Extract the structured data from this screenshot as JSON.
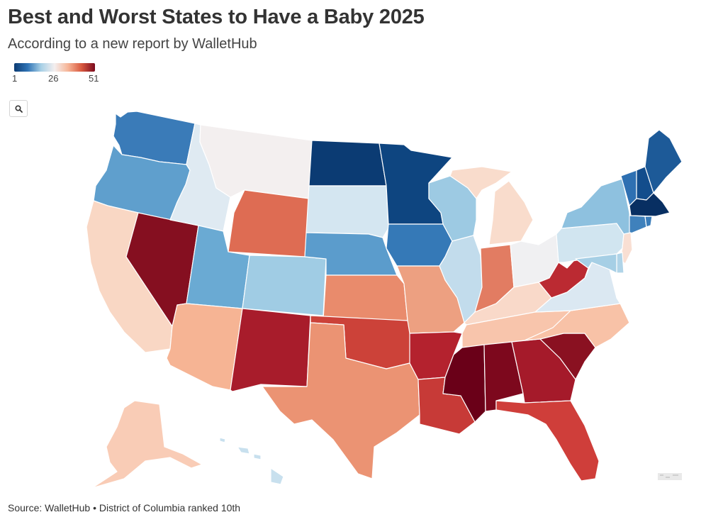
{
  "title": "Best and Worst States to Have a Baby 2025",
  "subtitle": "According to a new report by WalletHub",
  "legend": {
    "min_label": "1",
    "mid_label": "26",
    "max_label": "51",
    "colors": [
      "#0b3b73",
      "#2f73b5",
      "#a8d0e6",
      "#f4efef",
      "#f6b597",
      "#d9593f",
      "#7a0a1e"
    ]
  },
  "zoom_button": {
    "icon": "search-icon"
  },
  "source": "Source: WalletHub • District of Columbia ranked 10th",
  "map": {
    "states": [
      {
        "abbr": "WA",
        "rank": 7,
        "color": "#3a7bb8"
      },
      {
        "abbr": "OR",
        "rank": 12,
        "color": "#5f9fcd"
      },
      {
        "abbr": "CA",
        "rank": 32,
        "color": "#f9d7c4"
      },
      {
        "abbr": "NV",
        "rank": 47,
        "color": "#850f20"
      },
      {
        "abbr": "ID",
        "rank": 22,
        "color": "#dfeaf2"
      },
      {
        "abbr": "MT",
        "rank": 25,
        "color": "#f3efef"
      },
      {
        "abbr": "WY",
        "rank": 39,
        "color": "#de6c53"
      },
      {
        "abbr": "UT",
        "rank": 13,
        "color": "#6aaad3"
      },
      {
        "abbr": "AZ",
        "rank": 34,
        "color": "#f6b494"
      },
      {
        "abbr": "CO",
        "rank": 17,
        "color": "#a0cce4"
      },
      {
        "abbr": "NM",
        "rank": 44,
        "color": "#a81c2b"
      },
      {
        "abbr": "ND",
        "rank": 2,
        "color": "#0b3b73"
      },
      {
        "abbr": "SD",
        "rank": 21,
        "color": "#d4e6f1"
      },
      {
        "abbr": "NE",
        "rank": 11,
        "color": "#5b9ccc"
      },
      {
        "abbr": "KS",
        "rank": 36,
        "color": "#e98b6c"
      },
      {
        "abbr": "OK",
        "rank": 42,
        "color": "#cc4239"
      },
      {
        "abbr": "TX",
        "rank": 35,
        "color": "#eb9373"
      },
      {
        "abbr": "MN",
        "rank": 3,
        "color": "#0e4580"
      },
      {
        "abbr": "IA",
        "rank": 8,
        "color": "#3579b7"
      },
      {
        "abbr": "MO",
        "rank": 33,
        "color": "#eda081"
      },
      {
        "abbr": "AR",
        "rank": 45,
        "color": "#b4222e"
      },
      {
        "abbr": "LA",
        "rank": 43,
        "color": "#c73a37"
      },
      {
        "abbr": "WI",
        "rank": 16,
        "color": "#9dcae3"
      },
      {
        "abbr": "IL",
        "rank": 20,
        "color": "#c2dcec"
      },
      {
        "abbr": "MI",
        "rank": 29,
        "color": "#f9dccc"
      },
      {
        "abbr": "IN",
        "rank": 38,
        "color": "#e27c62"
      },
      {
        "abbr": "OH",
        "rank": 24,
        "color": "#f0f0f2"
      },
      {
        "abbr": "KY",
        "rank": 30,
        "color": "#f9d9c9"
      },
      {
        "abbr": "TN",
        "rank": 33,
        "color": "#f8c5ac"
      },
      {
        "abbr": "MS",
        "rank": 51,
        "color": "#6a0018"
      },
      {
        "abbr": "AL",
        "rank": 50,
        "color": "#7d081d"
      },
      {
        "abbr": "GA",
        "rank": 46,
        "color": "#a51a2a"
      },
      {
        "abbr": "FL",
        "rank": 41,
        "color": "#cf3e3a"
      },
      {
        "abbr": "SC",
        "rank": 48,
        "color": "#8a1121"
      },
      {
        "abbr": "NC",
        "rank": 31,
        "color": "#f8c2a7"
      },
      {
        "abbr": "VA",
        "rank": 23,
        "color": "#dbe8f2"
      },
      {
        "abbr": "WV",
        "rank": 44,
        "color": "#bb2a32"
      },
      {
        "abbr": "PA",
        "rank": 21,
        "color": "#d1e5f0"
      },
      {
        "abbr": "NY",
        "rank": 15,
        "color": "#8ec1df"
      },
      {
        "abbr": "VT",
        "rank": 6,
        "color": "#2e70b2"
      },
      {
        "abbr": "NH",
        "rank": 4,
        "color": "#134d8c"
      },
      {
        "abbr": "ME",
        "rank": 5,
        "color": "#1d5a98"
      },
      {
        "abbr": "MA",
        "rank": 1,
        "color": "#082f62"
      },
      {
        "abbr": "CT",
        "rank": 9,
        "color": "#3f81bc"
      },
      {
        "abbr": "RI",
        "rank": 8,
        "color": "#3a7cb9"
      },
      {
        "abbr": "NJ",
        "rank": 27,
        "color": "#f9dfd3"
      },
      {
        "abbr": "DE",
        "rank": 19,
        "color": "#b0d4e8"
      },
      {
        "abbr": "MD",
        "rank": 18,
        "color": "#a6cfe5"
      },
      {
        "abbr": "AK",
        "rank": 32,
        "color": "#f9ccb6"
      },
      {
        "abbr": "HI",
        "rank": 20,
        "color": "#c8e0ee"
      }
    ]
  }
}
